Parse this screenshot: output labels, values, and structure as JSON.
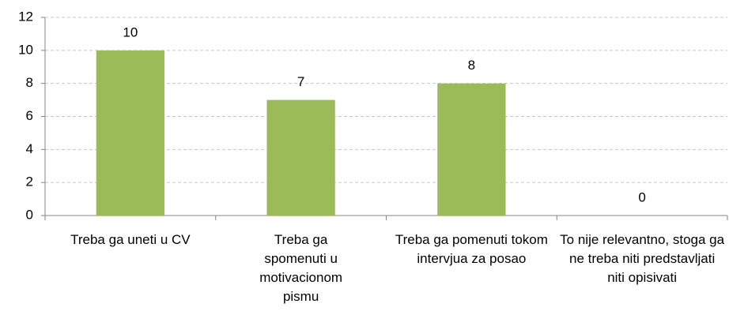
{
  "chart_data": {
    "type": "bar",
    "categories": [
      "Treba ga uneti u CV",
      "Treba ga spomenuti u motivacionom pismu",
      "Treba ga pomenuti tokom intervjua za posao",
      "To nije relevantno, stoga ga ne treba niti predstavljati niti opisivati"
    ],
    "values": [
      10,
      7,
      8,
      0
    ],
    "color": "#9bbb59",
    "ylim": [
      0,
      12
    ],
    "yticks": [
      0,
      2,
      4,
      6,
      8,
      10,
      12
    ],
    "grid": true
  }
}
